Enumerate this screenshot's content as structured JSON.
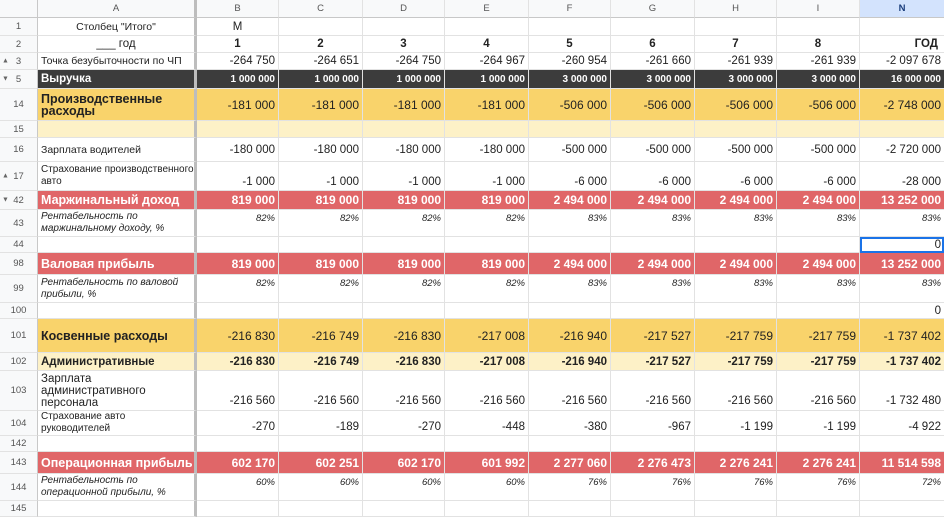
{
  "columns": {
    "row_header": "",
    "labels": [
      "A",
      "B",
      "C",
      "D",
      "E",
      "F",
      "G",
      "H",
      "I",
      "N"
    ]
  },
  "rows": [
    {
      "num": "1",
      "label": "Столбец \"Итого\"",
      "values": [
        "М",
        "",
        "",
        "",
        "",
        "",
        "",
        "",
        ""
      ],
      "style": "plain",
      "label_center": true
    },
    {
      "num": "2",
      "label": "___ год",
      "values": [
        "1",
        "2",
        "3",
        "4",
        "5",
        "6",
        "7",
        "8",
        "ГОД"
      ],
      "style": "periods",
      "label_center": true
    },
    {
      "num": "3",
      "marker": "up",
      "label": "Точка безубыточности по ЧП",
      "values": [
        "-264 750",
        "-264 651",
        "-264 750",
        "-264 967",
        "-260 954",
        "-261 660",
        "-261 939",
        "-261 939",
        "-2 097 678"
      ],
      "style": "plain"
    },
    {
      "num": "5",
      "marker": "down",
      "label": "Выручка",
      "values": [
        "1 000 000",
        "1 000 000",
        "1 000 000",
        "1 000 000",
        "3 000 000",
        "3 000 000",
        "3 000 000",
        "3 000 000",
        "16 000 000"
      ],
      "style": "dark"
    },
    {
      "num": "14",
      "label": "Производственные расходы",
      "values": [
        "-181 000",
        "-181 000",
        "-181 000",
        "-181 000",
        "-506 000",
        "-506 000",
        "-506 000",
        "-506 000",
        "-2 748 000"
      ],
      "style": "yellow-big"
    },
    {
      "num": "15",
      "label": "",
      "values": [
        "",
        "",
        "",
        "",
        "",
        "",
        "",
        "",
        ""
      ],
      "style": "lightyellow"
    },
    {
      "num": "16",
      "label": "Зарплата водителей",
      "values": [
        "-180 000",
        "-180 000",
        "-180 000",
        "-180 000",
        "-500 000",
        "-500 000",
        "-500 000",
        "-500 000",
        "-2 720 000"
      ],
      "style": "plain"
    },
    {
      "num": "17",
      "marker": "up",
      "label": "Страхование производственного авто",
      "values": [
        "-1 000",
        "-1 000",
        "-1 000",
        "-1 000",
        "-6 000",
        "-6 000",
        "-6 000",
        "-6 000",
        "-28 000"
      ],
      "style": "plain-wrap"
    },
    {
      "num": "42",
      "marker": "down",
      "label": "Маржинальный доход",
      "values": [
        "819 000",
        "819 000",
        "819 000",
        "819 000",
        "2 494 000",
        "2 494 000",
        "2 494 000",
        "2 494 000",
        "13 252 000"
      ],
      "style": "red"
    },
    {
      "num": "43",
      "label": "Рентабельность по маржинальному доходу, %",
      "values": [
        "82%",
        "82%",
        "82%",
        "82%",
        "83%",
        "83%",
        "83%",
        "83%",
        "83%"
      ],
      "style": "italic"
    },
    {
      "num": "44",
      "label": "",
      "values": [
        "",
        "",
        "",
        "",
        "",
        "",
        "",
        "",
        "0"
      ],
      "style": "selected"
    },
    {
      "num": "98",
      "label": "Валовая прибыль",
      "values": [
        "819 000",
        "819 000",
        "819 000",
        "819 000",
        "2 494 000",
        "2 494 000",
        "2 494 000",
        "2 494 000",
        "13 252 000"
      ],
      "style": "red"
    },
    {
      "num": "99",
      "label": "Рентабельность по валовой прибыли, %",
      "values": [
        "82%",
        "82%",
        "82%",
        "82%",
        "83%",
        "83%",
        "83%",
        "83%",
        "83%"
      ],
      "style": "italic"
    },
    {
      "num": "100",
      "label": "",
      "values": [
        "",
        "",
        "",
        "",
        "",
        "",
        "",
        "",
        "0"
      ],
      "style": "plain"
    },
    {
      "num": "101",
      "label": "Косвенные расходы",
      "values": [
        "-216 830",
        "-216 749",
        "-216 830",
        "-217 008",
        "-216 940",
        "-217 527",
        "-217 759",
        "-217 759",
        "-1 737 402"
      ],
      "style": "yellow-big"
    },
    {
      "num": "102",
      "label": "Административные",
      "values": [
        "-216 830",
        "-216 749",
        "-216 830",
        "-217 008",
        "-216 940",
        "-217 527",
        "-217 759",
        "-217 759",
        "-1 737 402"
      ],
      "style": "lightyellow-bold"
    },
    {
      "num": "103",
      "label": "Зарплата административного персонала",
      "values": [
        "-216 560",
        "-216 560",
        "-216 560",
        "-216 560",
        "-216 560",
        "-216 560",
        "-216 560",
        "-216 560",
        "-1 732 480"
      ],
      "style": "plain-wrap-bottom"
    },
    {
      "num": "104",
      "label": "Страхование авто руководителей",
      "values": [
        "-270",
        "-189",
        "-270",
        "-448",
        "-380",
        "-967",
        "-1 199",
        "-1 199",
        "-4 922"
      ],
      "style": "plain-wrap-small"
    },
    {
      "num": "142",
      "label": "",
      "values": [
        "",
        "",
        "",
        "",
        "",
        "",
        "",
        "",
        ""
      ],
      "style": "plain"
    },
    {
      "num": "143",
      "label": "Операционная прибыль",
      "values": [
        "602 170",
        "602 251",
        "602 170",
        "601 992",
        "2 277 060",
        "2 276 473",
        "2 276 241",
        "2 276 241",
        "11 514 598"
      ],
      "style": "red"
    },
    {
      "num": "144",
      "label": "Рентабельность по операционной прибыли, %",
      "values": [
        "60%",
        "60%",
        "60%",
        "60%",
        "76%",
        "76%",
        "76%",
        "76%",
        "72%"
      ],
      "style": "italic"
    },
    {
      "num": "145",
      "label": "",
      "values": [
        "",
        "",
        "",
        "",
        "",
        "",
        "",
        "",
        ""
      ],
      "style": "plain"
    }
  ]
}
